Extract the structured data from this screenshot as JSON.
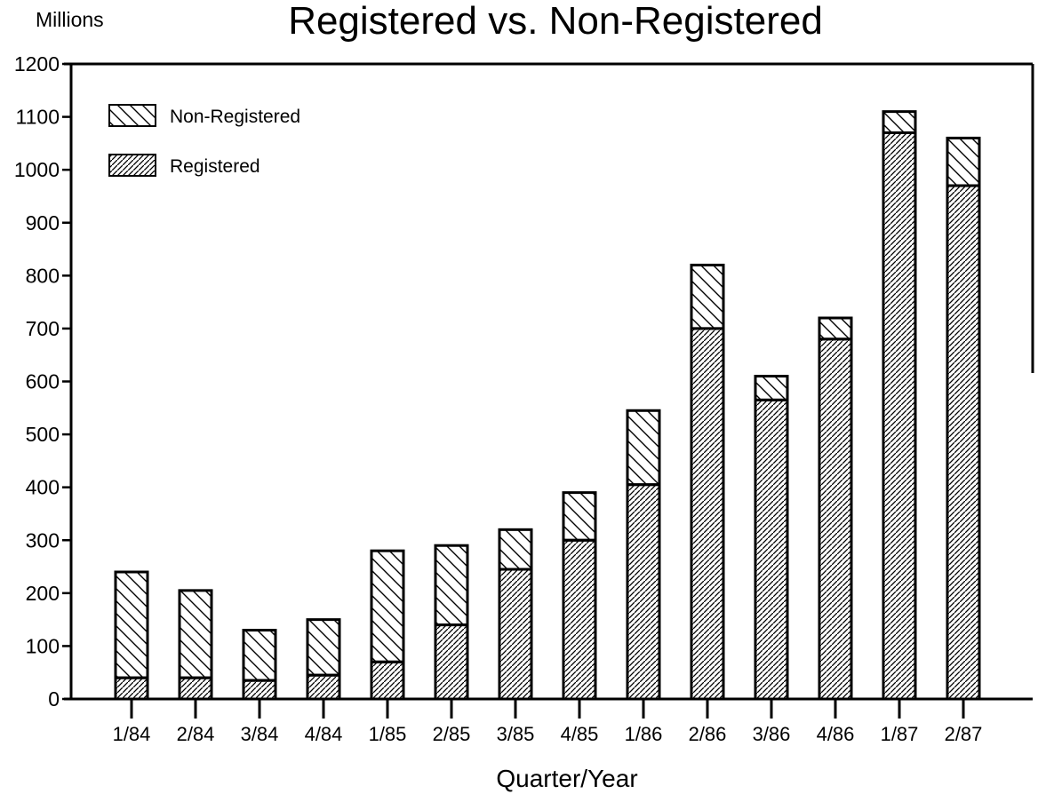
{
  "chart_data": {
    "type": "bar",
    "stacked": true,
    "title": "Registered vs. Non-Registered",
    "unit_label": "Millions",
    "xlabel": "Quarter/Year",
    "ylabel": "",
    "ylim": [
      0,
      1200
    ],
    "yticks": [
      0,
      100,
      200,
      300,
      400,
      500,
      600,
      700,
      800,
      900,
      1000,
      1100,
      1200
    ],
    "yticks_labels": [
      "0",
      "100",
      "200",
      "300",
      "400",
      "500",
      "600",
      "700",
      "800",
      "900",
      "1000",
      "1100",
      "1200"
    ],
    "grid": false,
    "legend_position": "top-left",
    "categories": [
      "1/84",
      "2/84",
      "3/84",
      "4/84",
      "1/85",
      "2/85",
      "3/85",
      "4/85",
      "1/86",
      "2/86",
      "3/86",
      "4/86",
      "1/87",
      "2/87"
    ],
    "series": [
      {
        "name": "Registered",
        "pattern": "dense-diagonal",
        "values": [
          40,
          40,
          35,
          45,
          70,
          140,
          245,
          300,
          405,
          700,
          565,
          680,
          1070,
          970
        ]
      },
      {
        "name": "Non-Registered",
        "pattern": "sparse-back-diagonal",
        "values": [
          200,
          165,
          95,
          105,
          210,
          150,
          75,
          90,
          140,
          120,
          45,
          40,
          40,
          90
        ]
      }
    ],
    "legend": [
      {
        "label": "Non-Registered",
        "pattern": "sparse-back-diagonal"
      },
      {
        "label": "Registered",
        "pattern": "dense-diagonal"
      }
    ]
  }
}
